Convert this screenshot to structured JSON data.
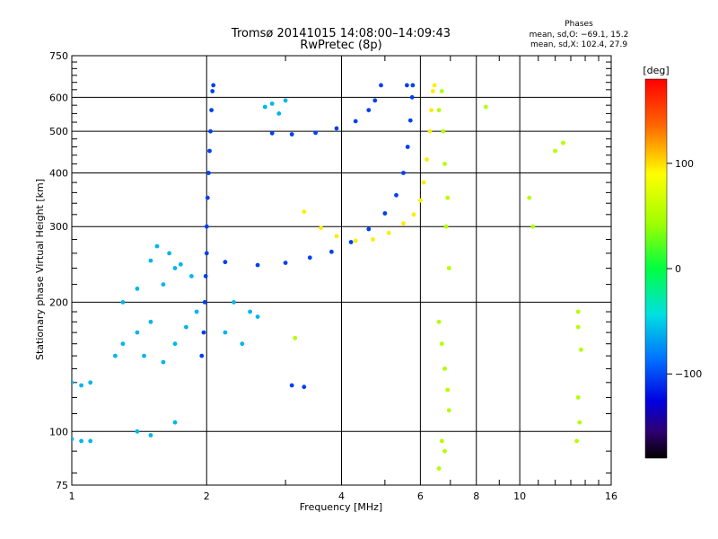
{
  "chart_data": {
    "type": "scatter",
    "title": "Tromsø 20141015 14:08:00–14:09:43",
    "subtitle": "RwPretec (8p)",
    "xlabel": "Frequency [MHz]",
    "ylabel": "Stationary phase Virtual Height [km]",
    "x_scale": "log",
    "y_scale": "log",
    "xlim": [
      1,
      16
    ],
    "ylim": [
      75,
      750
    ],
    "x_ticks": [
      1,
      2,
      4,
      6,
      8,
      10,
      16
    ],
    "y_ticks": [
      75,
      100,
      200,
      300,
      400,
      500,
      600,
      750
    ],
    "grid": true,
    "phase_stats": {
      "heading": "Phases",
      "line_o": "mean, sd,O: −69.1, 15.2",
      "line_x": "mean, sd,X: 102.4, 27.9"
    },
    "colorbar": {
      "label": "[deg]",
      "range": [
        -180,
        180
      ],
      "ticks": [
        100,
        0,
        -100
      ]
    },
    "series": [
      {
        "component": "O",
        "phase_deg": -100,
        "points": [
          [
            1.95,
            150
          ],
          [
            1.97,
            170
          ],
          [
            1.98,
            200
          ],
          [
            1.99,
            230
          ],
          [
            2.0,
            260
          ],
          [
            2.0,
            300
          ],
          [
            2.01,
            350
          ],
          [
            2.02,
            400
          ],
          [
            2.03,
            450
          ],
          [
            2.04,
            500
          ],
          [
            2.05,
            560
          ],
          [
            2.06,
            620
          ],
          [
            2.07,
            640
          ],
          [
            2.2,
            248
          ],
          [
            2.6,
            244
          ],
          [
            3.0,
            247
          ],
          [
            3.4,
            254
          ],
          [
            3.8,
            262
          ],
          [
            4.2,
            276
          ],
          [
            4.6,
            296
          ],
          [
            5.0,
            322
          ],
          [
            5.3,
            355
          ],
          [
            5.5,
            400
          ],
          [
            5.62,
            460
          ],
          [
            5.7,
            530
          ],
          [
            5.75,
            600
          ],
          [
            5.77,
            640
          ],
          [
            2.8,
            495
          ],
          [
            3.1,
            492
          ],
          [
            3.5,
            496
          ],
          [
            3.9,
            508
          ],
          [
            4.3,
            528
          ],
          [
            4.6,
            560
          ],
          [
            4.75,
            590
          ],
          [
            3.1,
            128
          ],
          [
            3.3,
            127
          ],
          [
            4.9,
            640
          ],
          [
            5.6,
            640
          ]
        ]
      },
      {
        "component": "X",
        "phase_deg": 105,
        "points": [
          [
            3.3,
            325
          ],
          [
            3.6,
            298
          ],
          [
            3.9,
            285
          ],
          [
            4.3,
            278
          ],
          [
            4.7,
            280
          ],
          [
            5.1,
            290
          ],
          [
            5.5,
            305
          ],
          [
            5.8,
            320
          ],
          [
            6.0,
            345
          ],
          [
            6.1,
            380
          ],
          [
            6.2,
            430
          ],
          [
            6.3,
            500
          ],
          [
            6.35,
            560
          ],
          [
            6.4,
            620
          ],
          [
            6.45,
            640
          ]
        ]
      },
      {
        "component": "scattered echoes",
        "phase_deg": -60,
        "points": [
          [
            1.0,
            130
          ],
          [
            1.05,
            128
          ],
          [
            1.1,
            130
          ],
          [
            1.0,
            96
          ],
          [
            1.05,
            95
          ],
          [
            1.1,
            95
          ],
          [
            1.25,
            150
          ],
          [
            1.3,
            160
          ],
          [
            1.4,
            170
          ],
          [
            1.5,
            180
          ],
          [
            1.45,
            150
          ],
          [
            1.6,
            145
          ],
          [
            1.7,
            160
          ],
          [
            1.8,
            175
          ],
          [
            1.9,
            190
          ],
          [
            1.6,
            220
          ],
          [
            1.7,
            240
          ],
          [
            1.5,
            250
          ],
          [
            1.55,
            270
          ],
          [
            1.65,
            260
          ],
          [
            1.75,
            245
          ],
          [
            1.85,
            230
          ],
          [
            2.3,
            200
          ],
          [
            2.5,
            190
          ],
          [
            2.6,
            185
          ],
          [
            2.2,
            170
          ],
          [
            2.4,
            160
          ],
          [
            1.4,
            100
          ],
          [
            1.5,
            98
          ],
          [
            1.7,
            105
          ],
          [
            2.7,
            570
          ],
          [
            2.8,
            580
          ],
          [
            2.9,
            550
          ],
          [
            3.0,
            590
          ],
          [
            1.4,
            215
          ],
          [
            1.3,
            200
          ]
        ]
      },
      {
        "component": "scattered echoes",
        "phase_deg": 60,
        "points": [
          [
            6.7,
            620
          ],
          [
            6.6,
            560
          ],
          [
            6.75,
            500
          ],
          [
            6.8,
            420
          ],
          [
            6.9,
            350
          ],
          [
            6.85,
            300
          ],
          [
            6.95,
            240
          ],
          [
            6.6,
            180
          ],
          [
            6.7,
            160
          ],
          [
            6.8,
            140
          ],
          [
            6.9,
            125
          ],
          [
            6.95,
            112
          ],
          [
            6.7,
            95
          ],
          [
            6.8,
            90
          ],
          [
            8.4,
            570
          ],
          [
            10.5,
            350
          ],
          [
            10.7,
            300
          ],
          [
            12.0,
            450
          ],
          [
            12.5,
            470
          ],
          [
            13.5,
            190
          ],
          [
            13.5,
            175
          ],
          [
            13.7,
            155
          ],
          [
            13.5,
            120
          ],
          [
            13.6,
            105
          ],
          [
            13.4,
            95
          ],
          [
            3.15,
            165
          ],
          [
            6.6,
            82
          ]
        ]
      }
    ]
  }
}
